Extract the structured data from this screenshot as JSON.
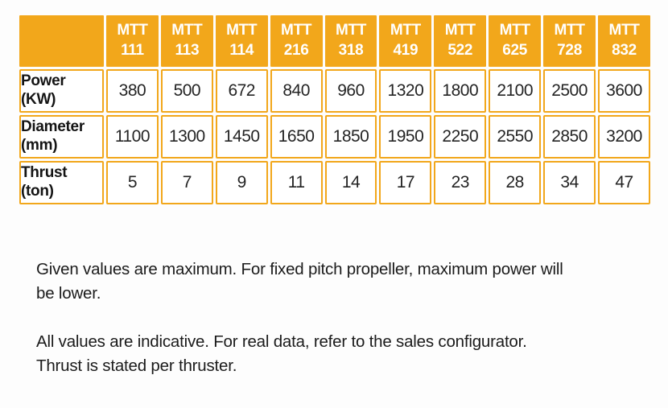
{
  "colors": {
    "accent": "#F2A71B",
    "header_text": "#FFFFFF",
    "body_text": "#242424"
  },
  "table": {
    "corner_label": "",
    "columns": [
      {
        "line1": "MTT",
        "line2": "111"
      },
      {
        "line1": "MTT",
        "line2": "113"
      },
      {
        "line1": "MTT",
        "line2": "114"
      },
      {
        "line1": "MTT",
        "line2": "216"
      },
      {
        "line1": "MTT",
        "line2": "318"
      },
      {
        "line1": "MTT",
        "line2": "419"
      },
      {
        "line1": "MTT",
        "line2": "522"
      },
      {
        "line1": "MTT",
        "line2": "625"
      },
      {
        "line1": "MTT",
        "line2": "728"
      },
      {
        "line1": "MTT",
        "line2": "832"
      }
    ],
    "rows": [
      {
        "label": "Power",
        "unit": "(KW)",
        "values": [
          "380",
          "500",
          "672",
          "840",
          "960",
          "1320",
          "1800",
          "2100",
          "2500",
          "3600"
        ]
      },
      {
        "label": "Diameter",
        "unit": "(mm)",
        "values": [
          "1100",
          "1300",
          "1450",
          "1650",
          "1850",
          "1950",
          "2250",
          "2550",
          "2850",
          "3200"
        ]
      },
      {
        "label": "Thrust",
        "unit": "(ton)",
        "values": [
          "5",
          "7",
          "9",
          "11",
          "14",
          "17",
          "23",
          "28",
          "34",
          "47"
        ]
      }
    ]
  },
  "notes": [
    {
      "lines": [
        "Given values are maximum. For fixed pitch propeller, maximum power will",
        "be lower."
      ]
    },
    {
      "lines": [
        "All values are indicative. For real data, refer to the sales configurator.",
        "Thrust is stated per thruster."
      ]
    }
  ]
}
